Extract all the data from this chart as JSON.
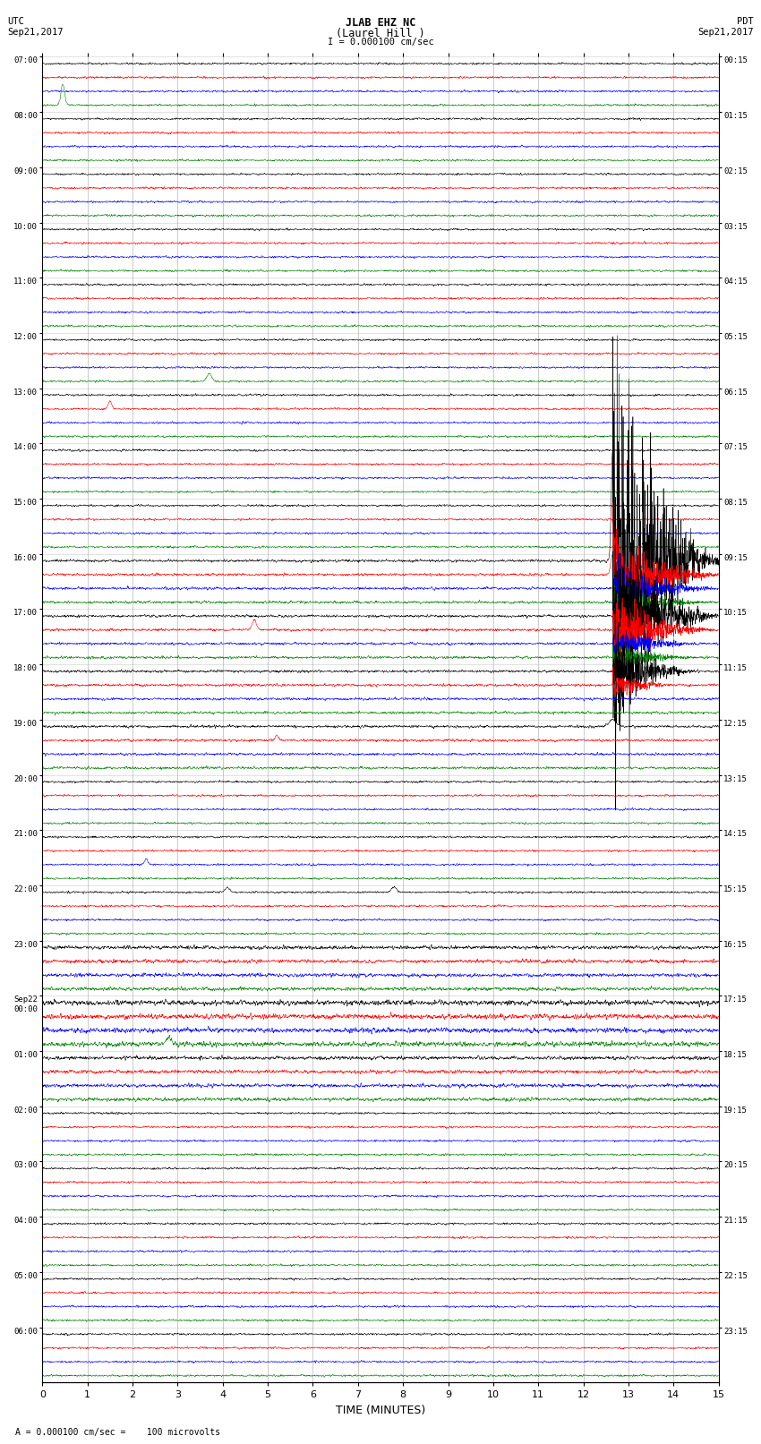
{
  "title_line1": "JLAB EHZ NC",
  "title_line2": "(Laurel Hill )",
  "scale_text": "I = 0.000100 cm/sec",
  "left_header_line1": "UTC",
  "left_header_line2": "Sep21,2017",
  "right_header_line1": "PDT",
  "right_header_line2": "Sep21,2017",
  "xlabel": "TIME (MINUTES)",
  "bottom_note": " = 0.000100 cm/sec =    100 microvolts",
  "utc_labels": [
    "07:00",
    "08:00",
    "09:00",
    "10:00",
    "11:00",
    "12:00",
    "13:00",
    "14:00",
    "15:00",
    "16:00",
    "17:00",
    "18:00",
    "19:00",
    "20:00",
    "21:00",
    "22:00",
    "23:00",
    "Sep22\n00:00",
    "01:00",
    "02:00",
    "03:00",
    "04:00",
    "05:00",
    "06:00"
  ],
  "pdt_labels": [
    "00:15",
    "01:15",
    "02:15",
    "03:15",
    "04:15",
    "05:15",
    "06:15",
    "07:15",
    "08:15",
    "09:15",
    "10:15",
    "11:15",
    "12:15",
    "13:15",
    "14:15",
    "15:15",
    "16:15",
    "17:15",
    "18:15",
    "19:15",
    "20:15",
    "21:15",
    "22:15",
    "23:15"
  ],
  "n_rows": 24,
  "traces_per_row": 4,
  "x_min": 0,
  "x_max": 15,
  "colors": [
    "black",
    "red",
    "blue",
    "green"
  ],
  "bg_color": "white",
  "grid_color": "#999999",
  "noise_amplitude": 0.055,
  "seed": 42
}
